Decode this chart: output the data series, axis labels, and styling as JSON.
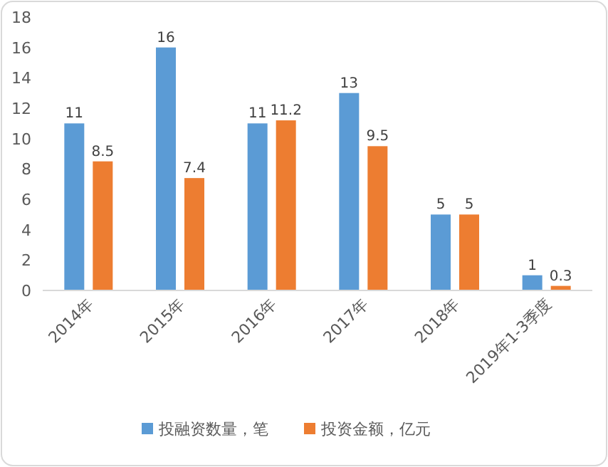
{
  "chart_data": {
    "type": "bar",
    "categories": [
      "2014年",
      "2015年",
      "2016年",
      "2017年",
      "2018年",
      "2019年1-3季度"
    ],
    "series": [
      {
        "name": "投融资数量，笔",
        "color": "#5b9bd5",
        "values": [
          11,
          16,
          11,
          13,
          5,
          1
        ]
      },
      {
        "name": "投资金额，亿元",
        "color": "#ed7d31",
        "values": [
          8.5,
          7.4,
          11.2,
          9.5,
          5,
          0.3
        ]
      }
    ],
    "ylim": [
      0,
      18
    ],
    "yticks": [
      0,
      2,
      4,
      6,
      8,
      10,
      12,
      14,
      16,
      18
    ],
    "data_labels": true,
    "legend": "bottom",
    "grid": false
  }
}
